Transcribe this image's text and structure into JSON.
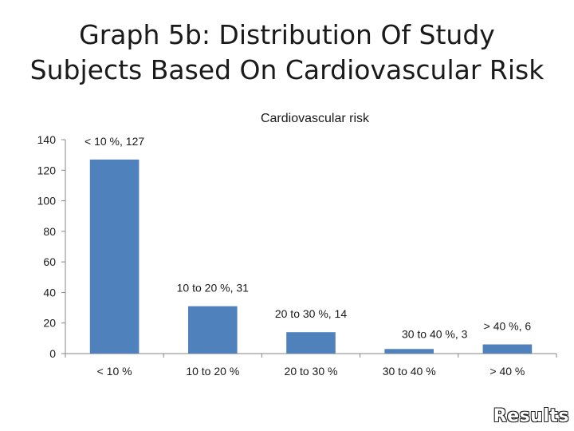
{
  "slide": {
    "title_line1": "Graph 5b: Distribution Of Study",
    "title_line2": "Subjects Based On Cardiovascular Risk",
    "footer": "Results"
  },
  "colors": {
    "bar": "#4F81BD",
    "axis": "#868686",
    "text": "#1a1a1a"
  },
  "chart_data": {
    "type": "bar",
    "title": "Cardiovascular risk",
    "xlabel": "",
    "ylabel": "",
    "categories": [
      "< 10 %",
      "10 to 20 %",
      "20 to 30 %",
      "30 to 40 %",
      "> 40 %"
    ],
    "values": [
      127,
      31,
      14,
      3,
      6
    ],
    "data_labels": [
      "< 10 %, 127",
      "10 to 20 %, 31",
      "20 to 30 %, 14",
      "30 to 40 %, 3",
      "> 40 %, 6"
    ],
    "yticks": [
      0,
      20,
      40,
      60,
      80,
      100,
      120,
      140
    ],
    "ylim": [
      0,
      140
    ],
    "grid": false,
    "legend": "none"
  }
}
